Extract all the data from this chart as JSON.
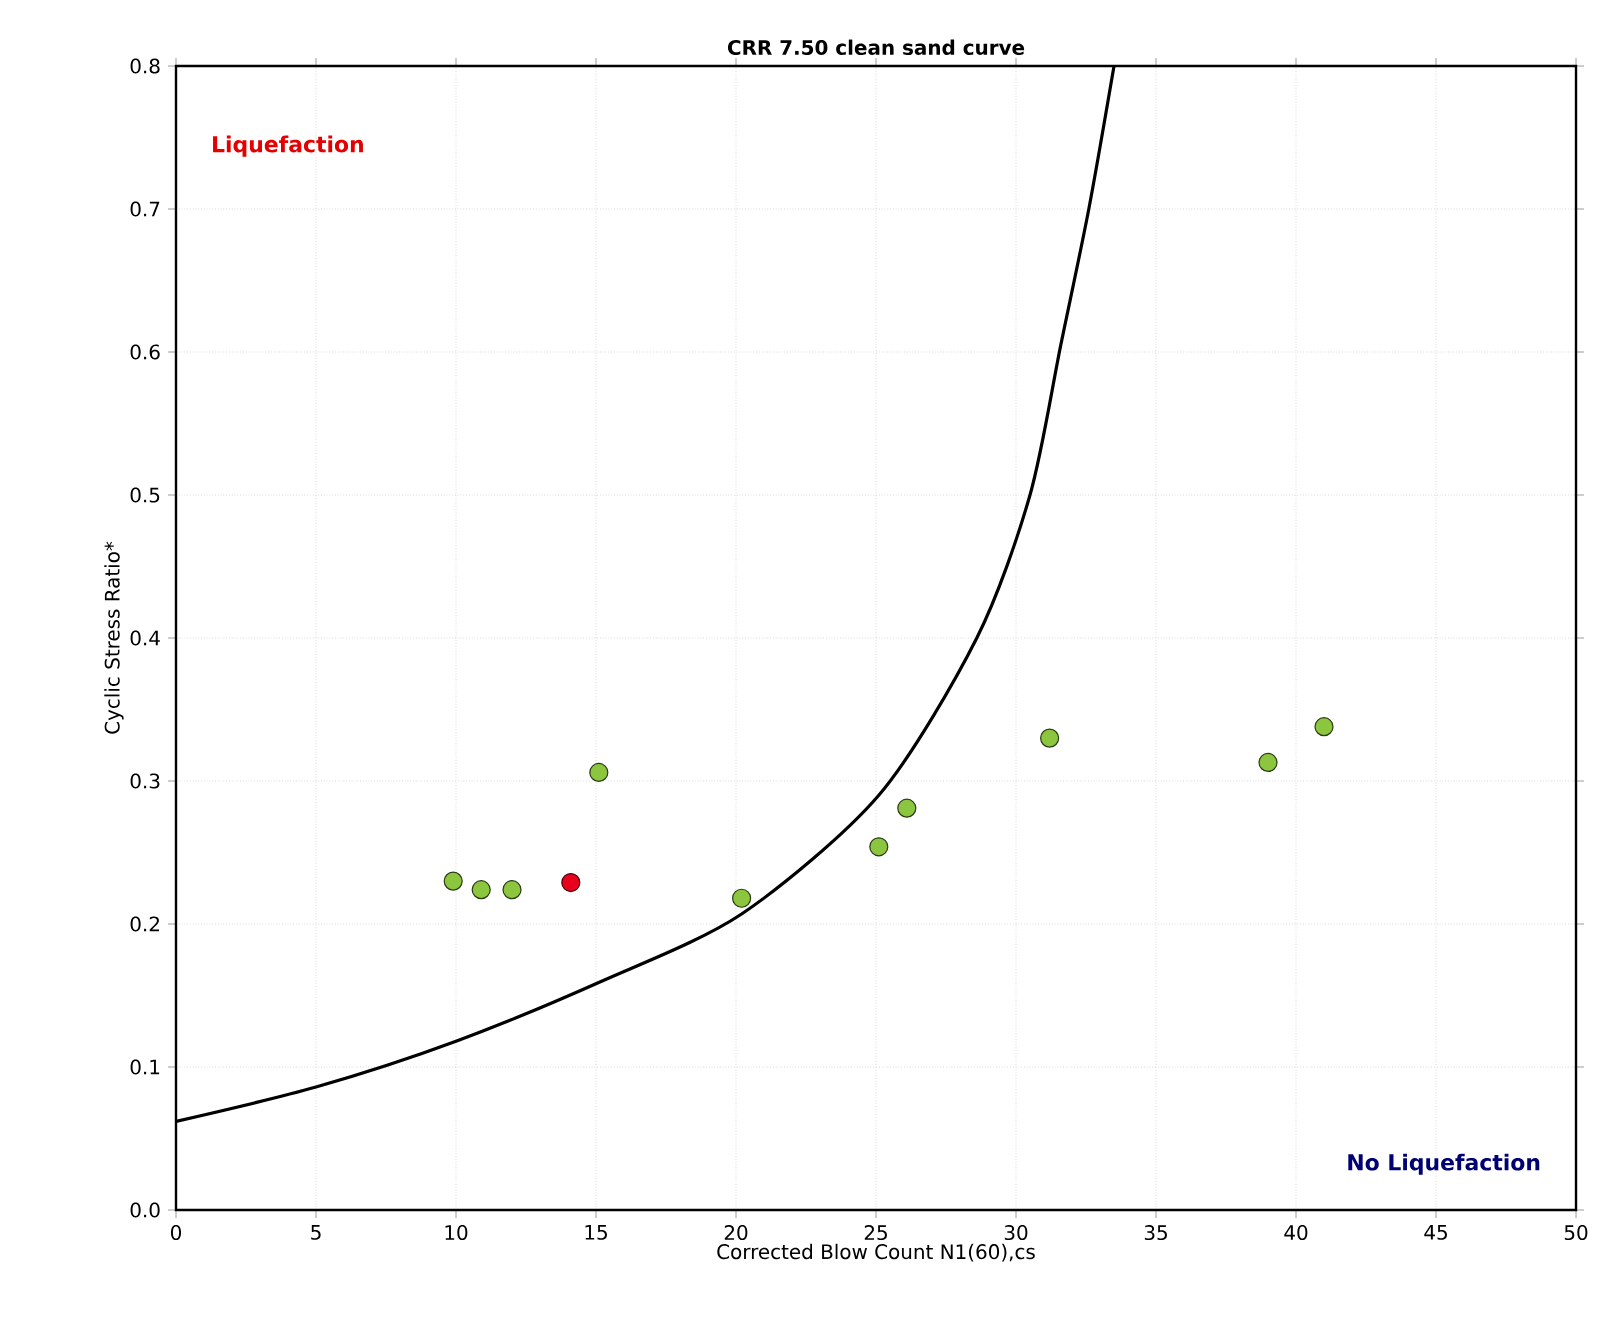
{
  "chart_data": {
    "type": "scatter",
    "title": "CRR 7.50 clean sand curve",
    "xlabel": "Corrected Blow Count N1(60),cs",
    "ylabel": "Cyclic Stress Ratio*",
    "xlim": [
      0,
      50
    ],
    "ylim": [
      0,
      0.8
    ],
    "xticks": [
      0,
      5,
      10,
      15,
      20,
      25,
      30,
      35,
      40,
      45,
      50
    ],
    "yticks": [
      {
        "value": 0,
        "label": "0.0"
      },
      0.1,
      0.2,
      0.3,
      0.4,
      0.5,
      0.6,
      0.7,
      0.8
    ],
    "grid": true,
    "annotations": [
      "Liquefaction",
      "No Liquefaction"
    ],
    "series": [
      {
        "type": "line",
        "color": "#000000",
        "marker": "none",
        "line_style": "solid",
        "x": [
          0,
          5,
          10,
          15.2,
          20.2,
          25.1,
          28.6,
          30.5,
          31.6,
          32.6,
          33.5
        ],
        "values": [
          0.062,
          0.086,
          0.118,
          0.16,
          0.207,
          0.29,
          0.4,
          0.5,
          0.605,
          0.7,
          0.8
        ]
      },
      {
        "color": "#8cc63f",
        "marker": "circle",
        "x": [
          9.9,
          10.9,
          12,
          15.1,
          20.2,
          25.1,
          26.1,
          31.2,
          39,
          41
        ],
        "values": [
          0.23,
          0.224,
          0.224,
          0.306,
          0.218,
          0.254,
          0.281,
          0.33,
          0.313,
          0.338
        ]
      },
      {
        "color": "#e8001c",
        "marker": "circle",
        "x": [
          14.1
        ],
        "values": [
          0.229
        ]
      }
    ]
  }
}
